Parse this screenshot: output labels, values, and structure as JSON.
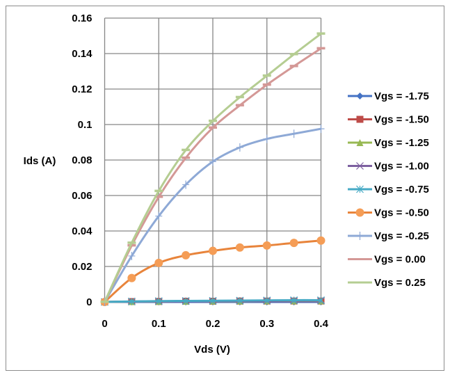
{
  "chart_data": {
    "type": "line",
    "title": "",
    "xlabel": "Vds (V)",
    "ylabel": "Ids (A)",
    "xlim": [
      0,
      0.4
    ],
    "ylim": [
      0,
      0.16
    ],
    "xticks": [
      "0",
      "0.1",
      "0.2",
      "0.3",
      "0.4"
    ],
    "xtick_values": [
      0,
      0.1,
      0.2,
      0.3,
      0.4
    ],
    "yticks": [
      "0",
      "0.02",
      "0.04",
      "0.06",
      "0.08",
      "0.1",
      "0.12",
      "0.14",
      "0.16"
    ],
    "ytick_values": [
      0,
      0.02,
      0.04,
      0.06,
      0.08,
      0.1,
      0.12,
      0.14,
      0.16
    ],
    "grid": true,
    "legend_position": "right",
    "x": [
      0,
      0.05,
      0.1,
      0.15,
      0.2,
      0.25,
      0.3,
      0.35,
      0.4
    ],
    "series": [
      {
        "name": "Vgs = -1.75",
        "color": "#4472c4",
        "marker": "diamond",
        "values": [
          0,
          0,
          0,
          0,
          0,
          0,
          0,
          0,
          0
        ]
      },
      {
        "name": "Vgs = -1.50",
        "color": "#be4b48",
        "marker": "square",
        "values": [
          0,
          0.0002,
          0.0003,
          0.0004,
          0.0004,
          0.0005,
          0.0005,
          0.0005,
          0.0005
        ]
      },
      {
        "name": "Vgs = -1.25",
        "color": "#98b954",
        "marker": "triangle",
        "values": [
          0,
          0.0002,
          0.0003,
          0.0004,
          0.0005,
          0.0005,
          0.0006,
          0.0006,
          0.0006
        ]
      },
      {
        "name": "Vgs = -1.00",
        "color": "#7d60a0",
        "marker": "x",
        "values": [
          0,
          0.0002,
          0.0003,
          0.0004,
          0.0005,
          0.0006,
          0.0006,
          0.0007,
          0.0007
        ]
      },
      {
        "name": "Vgs = -0.75",
        "color": "#46aac5",
        "marker": "star",
        "values": [
          0,
          0.0003,
          0.0005,
          0.0006,
          0.0007,
          0.0008,
          0.0009,
          0.001,
          0.001
        ]
      },
      {
        "name": "Vgs = -0.50",
        "color": "#f59d56",
        "linecolor": "#e8843b",
        "marker": "circle",
        "values": [
          0,
          0.0135,
          0.022,
          0.0263,
          0.0288,
          0.0307,
          0.0318,
          0.0333,
          0.0346
        ]
      },
      {
        "name": "Vgs = -0.25",
        "color": "#8ea9d6",
        "marker": "plus",
        "values": [
          0,
          0.0259,
          0.0484,
          0.0661,
          0.0791,
          0.0871,
          0.0919,
          0.0948,
          0.0976
        ]
      },
      {
        "name": "Vgs = 0.00",
        "color": "#d49896",
        "marker": "dash",
        "values": [
          0,
          0.0318,
          0.0592,
          0.0812,
          0.0982,
          0.1108,
          0.1224,
          0.1329,
          0.1429
        ]
      },
      {
        "name": "Vgs = 0.25",
        "color": "#b5cd92",
        "marker": "dash",
        "values": [
          0,
          0.0333,
          0.0625,
          0.0856,
          0.102,
          0.1154,
          0.1275,
          0.1396,
          0.1512
        ]
      }
    ]
  }
}
